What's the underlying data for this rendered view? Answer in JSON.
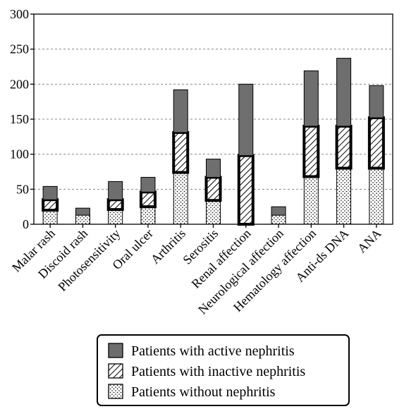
{
  "chart_data": {
    "type": "bar",
    "stacked": true,
    "categories": [
      "Malar rash",
      "Discoid rash",
      "Photosensitivity",
      "Oral ulcer",
      "Arthritis",
      "Serositis",
      "Renal affection",
      "Neurological affection",
      "Hematology affection",
      "Anti-ds DNA",
      "ANA"
    ],
    "series": [
      {
        "name": "Patients without nephritis",
        "values": [
          20,
          13,
          21,
          25,
          74,
          34,
          0,
          13,
          68,
          80,
          80
        ],
        "pattern": "dots"
      },
      {
        "name": "Patients with inactive nephritis",
        "values": [
          15,
          0,
          14,
          21,
          57,
          33,
          98,
          0,
          72,
          60,
          72
        ],
        "pattern": "hatch"
      },
      {
        "name": "Patients with active nephritis",
        "values": [
          19,
          10,
          26,
          21,
          61,
          26,
          102,
          12,
          79,
          97,
          46
        ],
        "pattern": "solid"
      }
    ],
    "title": "",
    "xlabel": "",
    "ylabel": "",
    "ylim": [
      0,
      300
    ],
    "yticks": [
      "0",
      "50",
      "100",
      "150",
      "200",
      "250",
      "300"
    ],
    "grid": true,
    "legend_position": "bottom",
    "colors": {
      "active": "#6e6e6e",
      "border": "#000000",
      "grid": "#888888"
    }
  }
}
